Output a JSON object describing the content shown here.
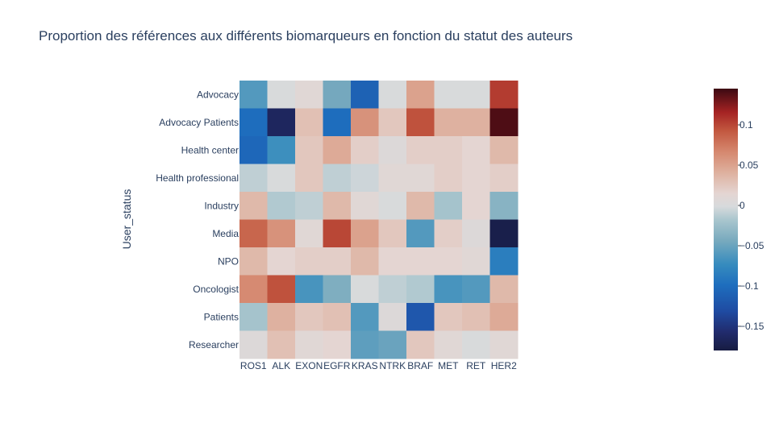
{
  "chart_data": {
    "type": "heatmap",
    "title": "Proportion des références aux différents biomarqueurs en fonction du statut des auteurs",
    "xlabel": "",
    "ylabel": "User_status",
    "x": [
      "ROS1",
      "ALK",
      "EXON",
      "EGFR",
      "KRAS",
      "NTRK",
      "BRAF",
      "MET",
      "RET",
      "HER2"
    ],
    "y": [
      "Advocacy",
      "Advocacy Patients",
      "Health center",
      "Health professional",
      "Industry",
      "Media",
      "NPO",
      "Oncologist",
      "Patients",
      "Researcher"
    ],
    "z": [
      [
        -0.06,
        0.0,
        0.01,
        -0.045,
        -0.11,
        0.0,
        0.05,
        0.0,
        0.0,
        0.105
      ],
      [
        -0.1,
        -0.165,
        0.03,
        -0.1,
        0.06,
        0.025,
        0.095,
        0.04,
        0.04,
        0.14
      ],
      [
        -0.105,
        -0.07,
        0.025,
        0.045,
        0.02,
        0.005,
        0.02,
        0.02,
        0.015,
        0.035
      ],
      [
        -0.01,
        0.0,
        0.025,
        -0.01,
        -0.005,
        0.01,
        0.01,
        0.02,
        0.015,
        0.02
      ],
      [
        0.035,
        -0.015,
        -0.01,
        0.035,
        0.01,
        0.0,
        0.035,
        -0.02,
        0.015,
        -0.035
      ],
      [
        0.085,
        0.06,
        0.01,
        0.1,
        0.05,
        0.025,
        -0.06,
        0.02,
        0.005,
        -0.175
      ],
      [
        0.035,
        0.015,
        0.02,
        0.02,
        0.035,
        0.015,
        0.015,
        0.015,
        0.01,
        -0.085
      ],
      [
        0.065,
        0.095,
        -0.065,
        -0.04,
        0.0,
        -0.01,
        -0.015,
        -0.065,
        -0.06,
        0.035
      ],
      [
        -0.02,
        0.04,
        0.025,
        0.03,
        -0.06,
        0.005,
        -0.12,
        0.025,
        0.03,
        0.045
      ],
      [
        0.005,
        0.03,
        0.01,
        0.015,
        -0.055,
        -0.05,
        0.025,
        0.01,
        0.0,
        0.01
      ]
    ],
    "zmin": -0.18,
    "zmax": 0.145,
    "colorscale": "balance",
    "colorbar_ticks": [
      {
        "value": 0.1,
        "label": "0.1"
      },
      {
        "value": 0.05,
        "label": "0.05"
      },
      {
        "value": 0,
        "label": "0"
      },
      {
        "value": -0.05,
        "label": "−0.05"
      },
      {
        "value": -0.1,
        "label": "−0.1"
      },
      {
        "value": -0.15,
        "label": "−0.15"
      }
    ]
  }
}
